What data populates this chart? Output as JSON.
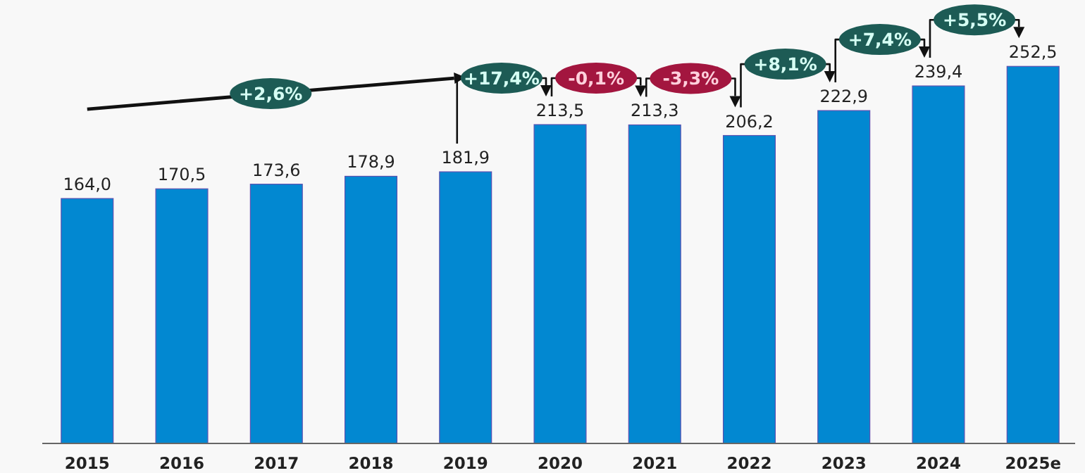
{
  "chart_data": {
    "type": "bar",
    "categories": [
      "2015",
      "2016",
      "2017",
      "2018",
      "2019",
      "2020",
      "2021",
      "2022",
      "2023",
      "2024",
      "2025e"
    ],
    "values": [
      164.0,
      170.5,
      173.6,
      178.9,
      181.9,
      213.5,
      213.3,
      206.2,
      222.9,
      239.4,
      252.5
    ],
    "value_labels": [
      "164,0",
      "170,5",
      "173,6",
      "178,9",
      "181,9",
      "213,5",
      "213,3",
      "206,2",
      "222,9",
      "239,4",
      "252,5"
    ],
    "color": "#0288d1",
    "annotations": [
      "+2,6%",
      "+17,4%",
      "-0,1%",
      "-3,3%",
      "+8,1%",
      "+7,4%",
      "+5,5%"
    ]
  }
}
